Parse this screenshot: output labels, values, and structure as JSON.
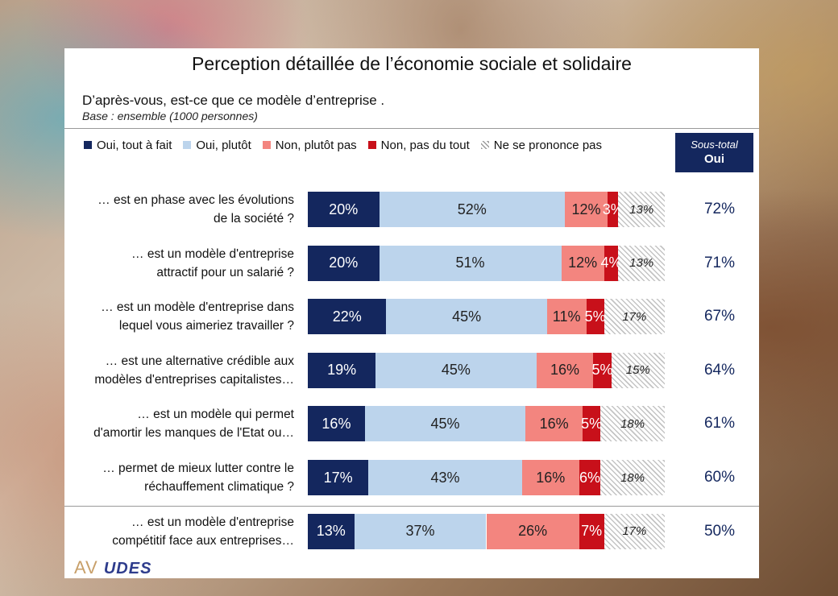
{
  "title": "Perception détaillée de l’économie sociale et solidaire",
  "question": "D’après-vous, est-ce que ce modèle d’entreprise .",
  "base": "Base : ensemble (1000 personnes)",
  "subtotal_header": {
    "line1": "Sous-total",
    "line2": "Oui"
  },
  "logo": {
    "part1": "AV",
    "part2": "UDES"
  },
  "colors": {
    "oui_tout_a_fait": "#14275e",
    "oui_plutot": "#bcd4ec",
    "non_plutot_pas": "#f3857f",
    "non_pas_du_tout": "#c8101a",
    "ne_se_prononce_pas": "hatch-grey"
  },
  "chart_data": {
    "type": "bar",
    "orientation": "horizontal-stacked-100",
    "series": [
      {
        "name": "Oui, tout à fait",
        "values": [
          20,
          20,
          22,
          19,
          16,
          17,
          13
        ]
      },
      {
        "name": "Oui, plutôt",
        "values": [
          52,
          51,
          45,
          45,
          45,
          43,
          37
        ]
      },
      {
        "name": "Non, plutôt pas",
        "values": [
          12,
          12,
          11,
          16,
          16,
          16,
          26
        ]
      },
      {
        "name": "Non, pas du tout",
        "values": [
          3,
          4,
          5,
          5,
          5,
          6,
          7
        ]
      },
      {
        "name": "Ne se prononce pas",
        "values": [
          13,
          13,
          17,
          15,
          18,
          18,
          17
        ]
      }
    ],
    "categories": [
      [
        "… est en phase avec les évolutions",
        "de la société ?"
      ],
      [
        "… est un modèle d'entreprise",
        "attractif pour un salarié ?"
      ],
      [
        "… est un modèle d'entreprise dans",
        "lequel vous aimeriez travailler ?"
      ],
      [
        "… est une alternative crédible aux",
        "modèles d'entreprises capitalistes…"
      ],
      [
        "… est un modèle qui permet",
        "d'amortir les manques de l'Etat ou…"
      ],
      [
        "… permet de mieux lutter contre le",
        "réchauffement climatique ?"
      ],
      [
        "… est un modèle d'entreprise",
        "compétitif face aux entreprises…"
      ]
    ],
    "subtotal_oui": [
      72,
      71,
      67,
      64,
      61,
      60,
      50
    ],
    "legend_position": "top"
  }
}
